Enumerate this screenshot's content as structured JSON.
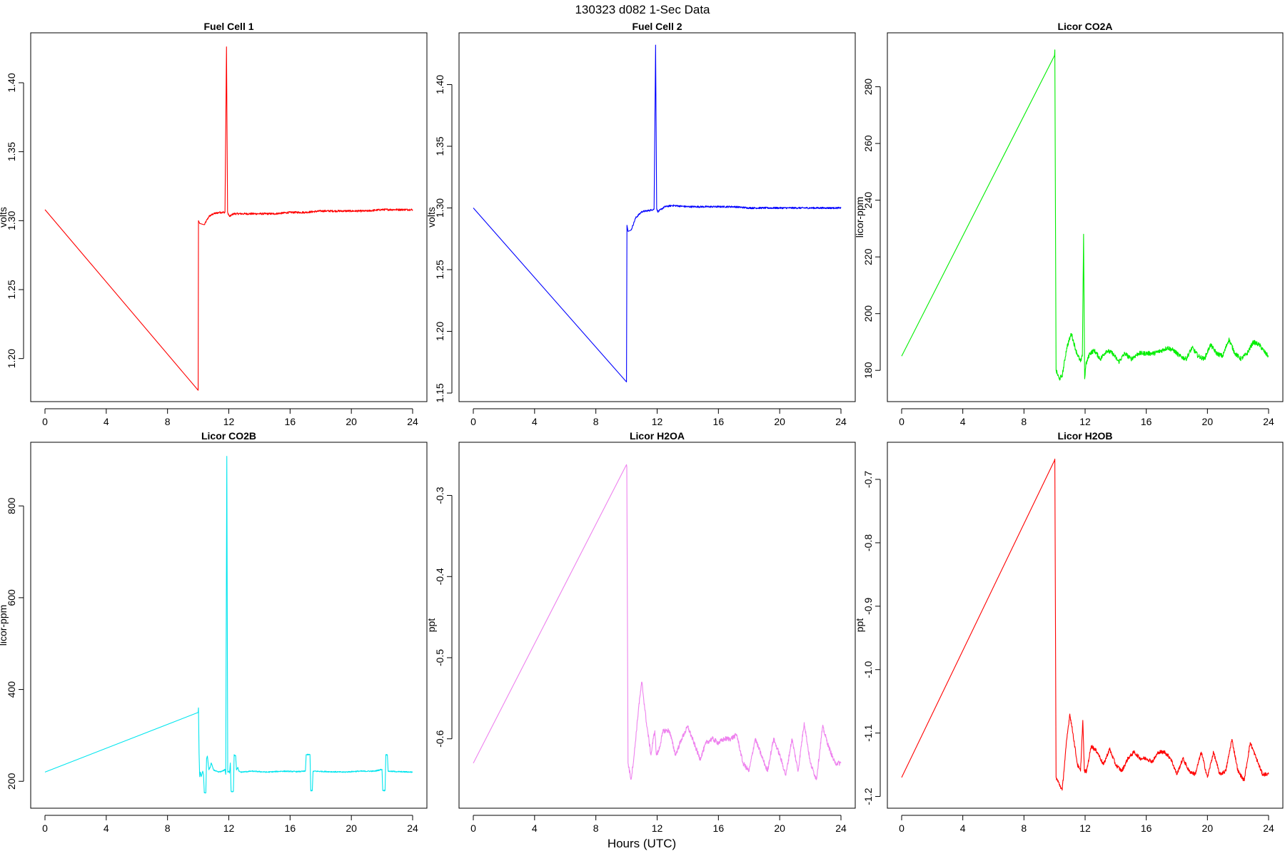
{
  "figure": {
    "suptitle": "130323   d082   1-Sec Data",
    "xlabel": "Hours (UTC)"
  },
  "chart_data": [
    {
      "type": "line",
      "title": "Fuel Cell 1",
      "ylabel": "volts",
      "color": "#ff0000",
      "xlim": [
        0,
        24
      ],
      "ylim": [
        1.175,
        1.43
      ],
      "xticks": [
        0,
        4,
        8,
        12,
        16,
        20,
        24
      ],
      "xtick_labels": [
        "0",
        "4",
        "8",
        "12",
        "16",
        "20",
        "24"
      ],
      "yticks": [
        1.2,
        1.25,
        1.3,
        1.35,
        1.4
      ],
      "ytick_labels": [
        "1.20",
        "1.25",
        "1.30",
        "1.35",
        "1.40"
      ],
      "series": [
        {
          "x": [
            0,
            10,
            10.02,
            10.1,
            10.4,
            10.7,
            11.0,
            11.4,
            11.75,
            11.85,
            11.92,
            12.0,
            12.05,
            12.3,
            13,
            14,
            15,
            16,
            17,
            18,
            19,
            20,
            21,
            22,
            23,
            24
          ],
          "y": [
            1.308,
            1.177,
            1.3,
            1.298,
            1.297,
            1.303,
            1.305,
            1.306,
            1.306,
            1.426,
            1.306,
            1.304,
            1.303,
            1.305,
            1.305,
            1.305,
            1.305,
            1.306,
            1.306,
            1.307,
            1.307,
            1.307,
            1.307,
            1.308,
            1.308,
            1.308
          ],
          "noise": 0.0007,
          "noise_from": 10.4
        }
      ]
    },
    {
      "type": "line",
      "title": "Fuel Cell 2",
      "ylabel": "volts",
      "color": "#0000ff",
      "xlim": [
        0,
        24
      ],
      "ylim": [
        1.15,
        1.435
      ],
      "xticks": [
        0,
        4,
        8,
        12,
        16,
        20,
        24
      ],
      "xtick_labels": [
        "0",
        "4",
        "8",
        "12",
        "16",
        "20",
        "24"
      ],
      "yticks": [
        1.15,
        1.2,
        1.25,
        1.3,
        1.35,
        1.4
      ],
      "ytick_labels": [
        "1.15",
        "1.20",
        "1.25",
        "1.30",
        "1.35",
        "1.40"
      ],
      "series": [
        {
          "x": [
            0,
            10,
            10.03,
            10.1,
            10.3,
            10.6,
            11.0,
            11.5,
            11.8,
            11.9,
            11.97,
            12.05,
            12.5,
            13,
            14,
            15,
            16,
            17,
            18,
            19,
            20,
            21,
            22,
            23,
            24
          ],
          "y": [
            1.3,
            1.159,
            1.286,
            1.281,
            1.282,
            1.292,
            1.297,
            1.298,
            1.299,
            1.432,
            1.299,
            1.297,
            1.301,
            1.302,
            1.301,
            1.301,
            1.301,
            1.301,
            1.3,
            1.3,
            1.3,
            1.3,
            1.3,
            1.3,
            1.3
          ],
          "noise": 0.0007,
          "noise_from": 10.3
        }
      ]
    },
    {
      "type": "line",
      "title": "Licor CO2A",
      "ylabel": "licor-ppm",
      "color": "#00ee00",
      "xlim": [
        0,
        24
      ],
      "ylim": [
        172,
        296
      ],
      "xticks": [
        0,
        4,
        8,
        12,
        16,
        20,
        24
      ],
      "xtick_labels": [
        "0",
        "4",
        "8",
        "12",
        "16",
        "20",
        "24"
      ],
      "yticks": [
        180,
        200,
        220,
        240,
        260,
        280
      ],
      "ytick_labels": [
        "180",
        "200",
        "220",
        "240",
        "260",
        "280"
      ],
      "series": [
        {
          "x": [
            0,
            10,
            10.02,
            10.1,
            10.3,
            10.5,
            10.8,
            11.1,
            11.4,
            11.7,
            11.82,
            11.9,
            11.97,
            12.05,
            12.3,
            12.6,
            13.0,
            13.4,
            13.8,
            14.2,
            14.6,
            15.0,
            15.5,
            16.0,
            16.5,
            17.0,
            17.4,
            17.8,
            18.2,
            18.6,
            19.0,
            19.4,
            19.8,
            20.2,
            20.6,
            21.0,
            21.4,
            21.8,
            22.2,
            22.6,
            23.0,
            23.4,
            23.8,
            24
          ],
          "y": [
            185,
            291,
            293,
            180,
            177,
            178,
            188,
            193,
            187,
            183,
            185,
            228,
            177,
            182,
            186,
            187,
            184,
            187,
            186,
            183,
            186,
            184,
            186,
            186,
            186,
            187,
            188,
            187,
            185,
            184,
            188,
            185,
            184,
            189,
            186,
            185,
            191,
            186,
            184,
            186,
            190,
            189,
            186,
            185
          ],
          "noise": 0.8,
          "noise_from": 10.1
        }
      ]
    },
    {
      "type": "line",
      "title": "Licor CO2B",
      "ylabel": "licor-ppm",
      "color": "#00e5ee",
      "xlim": [
        0,
        24
      ],
      "ylim": [
        160,
        920
      ],
      "xticks": [
        0,
        4,
        8,
        12,
        16,
        20,
        24
      ],
      "xtick_labels": [
        "0",
        "4",
        "8",
        "12",
        "16",
        "20",
        "24"
      ],
      "yticks": [
        200,
        400,
        600,
        800
      ],
      "ytick_labels": [
        "200",
        "400",
        "600",
        "800"
      ],
      "series": [
        {
          "x": [
            0,
            10,
            10.02,
            10.06,
            10.1,
            10.15,
            10.2,
            10.3,
            10.35,
            10.4,
            10.5,
            10.55,
            10.6,
            10.7,
            10.8,
            10.85,
            11.0,
            11.3,
            11.6,
            11.75,
            11.8,
            11.87,
            11.93,
            12.0,
            12.05,
            12.1,
            12.15,
            12.3,
            12.35,
            12.45,
            12.5,
            12.6,
            12.65,
            12.8,
            13.5,
            14.5,
            15.5,
            16.5,
            17.0,
            17.05,
            17.3,
            17.35,
            17.45,
            17.5,
            18.5,
            19.5,
            20.5,
            21.5,
            22.0,
            22.05,
            22.2,
            22.25,
            22.35,
            22.4,
            23.0,
            24
          ],
          "y": [
            220,
            350,
            360,
            260,
            210,
            220,
            210,
            222,
            215,
            175,
            175,
            250,
            255,
            225,
            232,
            240,
            225,
            220,
            222,
            226,
            215,
            908,
            220,
            222,
            218,
            240,
            178,
            178,
            258,
            255,
            225,
            230,
            222,
            220,
            222,
            220,
            222,
            221,
            222,
            258,
            258,
            180,
            180,
            222,
            221,
            220,
            222,
            222,
            226,
            180,
            180,
            258,
            258,
            222,
            221,
            220
          ],
          "noise": 1.2,
          "noise_from": 10.2
        }
      ]
    },
    {
      "type": "line",
      "title": "Licor H2OA",
      "ylabel": "ppt",
      "color": "#ee82ee",
      "xlim": [
        0,
        24
      ],
      "ylim": [
        -0.675,
        -0.245
      ],
      "xticks": [
        0,
        4,
        8,
        12,
        16,
        20,
        24
      ],
      "xtick_labels": [
        "0",
        "4",
        "8",
        "12",
        "16",
        "20",
        "24"
      ],
      "yticks": [
        -0.6,
        -0.5,
        -0.4,
        -0.3
      ],
      "ytick_labels": [
        "-0.6",
        "-0.5",
        "-0.4",
        "-0.3"
      ],
      "series": [
        {
          "x": [
            0,
            10,
            10.02,
            10.1,
            10.3,
            10.5,
            10.8,
            11.0,
            11.3,
            11.6,
            11.75,
            11.85,
            11.95,
            12.1,
            12.4,
            12.8,
            13.2,
            13.6,
            14.0,
            14.4,
            14.8,
            15.2,
            15.6,
            16.0,
            16.4,
            16.8,
            17.2,
            17.6,
            18.0,
            18.4,
            18.8,
            19.2,
            19.6,
            20.0,
            20.4,
            20.8,
            21.2,
            21.6,
            22.0,
            22.4,
            22.8,
            23.2,
            23.6,
            24
          ],
          "y": [
            -0.63,
            -0.262,
            -0.265,
            -0.63,
            -0.65,
            -0.62,
            -0.56,
            -0.53,
            -0.58,
            -0.62,
            -0.6,
            -0.59,
            -0.62,
            -0.615,
            -0.59,
            -0.59,
            -0.62,
            -0.6,
            -0.585,
            -0.605,
            -0.625,
            -0.605,
            -0.6,
            -0.605,
            -0.6,
            -0.6,
            -0.595,
            -0.63,
            -0.64,
            -0.6,
            -0.62,
            -0.64,
            -0.6,
            -0.62,
            -0.645,
            -0.6,
            -0.64,
            -0.58,
            -0.63,
            -0.65,
            -0.585,
            -0.61,
            -0.63,
            -0.63
          ],
          "noise": 0.003,
          "noise_from": 10.1
        }
      ]
    },
    {
      "type": "line",
      "title": "Licor H2OB",
      "ylabel": "ppt",
      "color": "#ff0000",
      "xlim": [
        0,
        24
      ],
      "ylim": [
        -1.205,
        -0.655
      ],
      "xticks": [
        0,
        4,
        8,
        12,
        16,
        20,
        24
      ],
      "xtick_labels": [
        "0",
        "4",
        "8",
        "12",
        "16",
        "20",
        "24"
      ],
      "yticks": [
        -1.2,
        -1.1,
        -1.0,
        -0.9,
        -0.8,
        -0.7
      ],
      "ytick_labels": [
        "-1.2",
        "-1.1",
        "-1.0",
        "-0.9",
        "-0.8",
        "-0.7"
      ],
      "series": [
        {
          "x": [
            0,
            10,
            10.02,
            10.1,
            10.3,
            10.5,
            10.8,
            11.0,
            11.2,
            11.5,
            11.7,
            11.85,
            11.95,
            12.1,
            12.4,
            12.8,
            13.2,
            13.6,
            14.0,
            14.4,
            14.8,
            15.2,
            15.6,
            16.0,
            16.4,
            16.8,
            17.2,
            17.6,
            18.0,
            18.4,
            18.8,
            19.2,
            19.6,
            20.0,
            20.4,
            20.8,
            21.2,
            21.6,
            22.0,
            22.4,
            22.8,
            23.2,
            23.6,
            24
          ],
          "y": [
            -1.17,
            -0.67,
            -0.668,
            -1.17,
            -1.18,
            -1.19,
            -1.11,
            -1.07,
            -1.1,
            -1.15,
            -1.16,
            -1.08,
            -1.16,
            -1.16,
            -1.12,
            -1.13,
            -1.15,
            -1.125,
            -1.15,
            -1.16,
            -1.14,
            -1.13,
            -1.14,
            -1.14,
            -1.145,
            -1.13,
            -1.13,
            -1.14,
            -1.165,
            -1.14,
            -1.16,
            -1.165,
            -1.13,
            -1.17,
            -1.13,
            -1.165,
            -1.16,
            -1.11,
            -1.16,
            -1.175,
            -1.115,
            -1.14,
            -1.165,
            -1.165
          ],
          "noise": 0.003,
          "noise_from": 10.1
        }
      ]
    }
  ]
}
